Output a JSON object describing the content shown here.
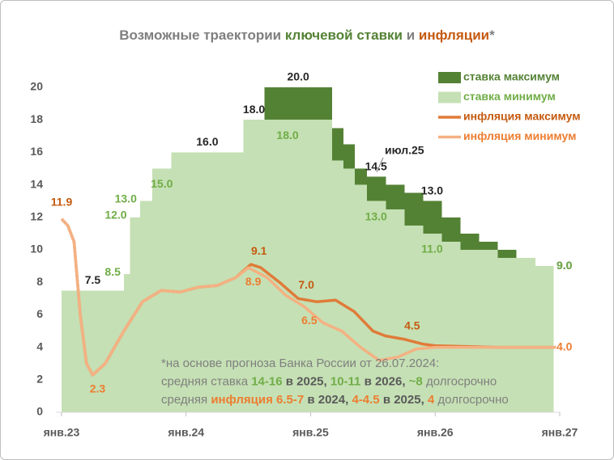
{
  "chart_data": {
    "type": "combo",
    "title": [
      {
        "text": "Возможные траектории ",
        "color": "#7f7f7f"
      },
      {
        "text": "ключевой ставки",
        "color": "#548235"
      },
      {
        "text": " и ",
        "color": "#7f7f7f"
      },
      {
        "text": "инфляции",
        "color": "#c55a11"
      },
      {
        "text": "*",
        "color": "#7f7f7f"
      }
    ],
    "xlim": [
      2023,
      2027
    ],
    "xticks": [
      {
        "value": 2023,
        "label": "янв.23"
      },
      {
        "value": 2024,
        "label": "янв.24"
      },
      {
        "value": 2025,
        "label": "янв.25"
      },
      {
        "value": 2026,
        "label": "янв.26"
      },
      {
        "value": 2027,
        "label": "янв.27"
      }
    ],
    "ylim": [
      0,
      20
    ],
    "yticks": [
      0,
      2,
      4,
      6,
      8,
      10,
      12,
      14,
      16,
      18,
      20
    ],
    "grid": false,
    "legend": "top-right",
    "series": [
      {
        "name": "ставка максимум",
        "type": "step",
        "color": "#548235",
        "label_color": "#262626",
        "x": [
          2023,
          2023.5,
          2023.55,
          2023.63,
          2023.73,
          2023.88,
          2024.46,
          2024.63,
          2025.17,
          2025.26,
          2025.35,
          2025.45,
          2025.6,
          2025.75,
          2025.9,
          2026.05,
          2026.2,
          2026.35,
          2026.5,
          2026.65,
          2026.8
        ],
        "values": [
          7.5,
          8.5,
          12,
          13,
          15,
          16,
          18,
          20,
          17.5,
          16.5,
          15,
          14.5,
          14,
          13.5,
          13,
          12,
          11,
          10.5,
          10,
          9.5,
          9
        ],
        "value_labels": [
          "7.5",
          null,
          null,
          null,
          null,
          "16.0",
          "18.0",
          "20.0",
          null,
          null,
          null,
          "14.5",
          null,
          null,
          "13.0",
          null,
          null,
          null,
          null,
          null,
          "9.0"
        ]
      },
      {
        "name": "ставка минимум",
        "type": "step",
        "color": "#c5e0b4",
        "label_color": "#70ad47",
        "x": [
          2023,
          2023.5,
          2023.55,
          2023.63,
          2023.73,
          2023.88,
          2024.46,
          2025.17,
          2025.26,
          2025.35,
          2025.45,
          2025.6,
          2025.75,
          2025.9,
          2026.05,
          2026.2,
          2026.5,
          2026.8
        ],
        "values": [
          7.5,
          8.5,
          12,
          13,
          15,
          16,
          18,
          15.5,
          15,
          14,
          13,
          12.5,
          11.5,
          11,
          10.5,
          10,
          9.5,
          9
        ],
        "value_labels": [
          null,
          "8.5",
          "12.0",
          "13.0",
          "15.0",
          null,
          "18.0",
          null,
          null,
          null,
          "13.0",
          null,
          null,
          "11.0",
          null,
          null,
          null,
          "9.0"
        ]
      },
      {
        "name": "инфляция максимум",
        "type": "line",
        "color": "#e07b39",
        "label_color": "#c55a11",
        "x": [
          2023.0,
          2023.05,
          2023.1,
          2023.15,
          2023.2,
          2023.25,
          2023.35,
          2023.5,
          2023.65,
          2023.8,
          2023.95,
          2024.1,
          2024.25,
          2024.4,
          2024.52,
          2024.6,
          2024.75,
          2024.9,
          2025.05,
          2025.2,
          2025.35,
          2025.5,
          2025.6,
          2025.75,
          2025.9,
          2026.0,
          2026.5,
          2026.97
        ],
        "values": [
          11.9,
          11.5,
          10.5,
          6,
          3,
          2.3,
          3,
          5,
          6.8,
          7.5,
          7.4,
          7.7,
          7.8,
          8.3,
          9.1,
          8.9,
          8,
          7.0,
          6.8,
          6.9,
          6.2,
          5.0,
          4.7,
          4.5,
          4.2,
          4.1,
          4.0,
          4.0
        ],
        "value_labels": [
          "11.9",
          null,
          null,
          null,
          null,
          null,
          null,
          null,
          null,
          null,
          null,
          null,
          null,
          null,
          "9.1",
          null,
          null,
          "7.0",
          null,
          null,
          null,
          null,
          null,
          "4.5",
          null,
          null,
          null,
          null
        ]
      },
      {
        "name": "инфляция минимум",
        "type": "line",
        "color": "#f4b183",
        "label_color": "#ed7d31",
        "x": [
          2023.0,
          2023.05,
          2023.1,
          2023.15,
          2023.2,
          2023.25,
          2023.35,
          2023.5,
          2023.65,
          2023.8,
          2023.95,
          2024.1,
          2024.25,
          2024.4,
          2024.5,
          2024.65,
          2024.8,
          2024.95,
          2025.1,
          2025.25,
          2025.4,
          2025.55,
          2025.7,
          2025.85,
          2026.0,
          2026.97
        ],
        "values": [
          11.9,
          11.5,
          10.5,
          6,
          3,
          2.3,
          3,
          5,
          6.8,
          7.5,
          7.4,
          7.7,
          7.8,
          8.3,
          8.9,
          8.3,
          7.2,
          6.5,
          5.5,
          5.0,
          4.0,
          3.2,
          3.4,
          3.9,
          4.0,
          4.0
        ],
        "value_labels": [
          null,
          null,
          null,
          null,
          null,
          "2.3",
          null,
          null,
          null,
          null,
          null,
          null,
          null,
          null,
          "8.9",
          null,
          null,
          "6.5",
          null,
          null,
          null,
          null,
          null,
          null,
          null,
          "4.0"
        ]
      }
    ],
    "annotations": [
      "июл.25"
    ],
    "note": [
      [
        {
          "text": "*на основе прогноза Банка России от 26.07.2024:",
          "color": "#7f7f7f",
          "bold": false
        }
      ],
      [
        {
          "text": "средняя ставка ",
          "color": "#7f7f7f",
          "bold": false
        },
        {
          "text": "14-16",
          "color": "#70ad47",
          "bold": true
        },
        {
          "text": " в 2025, ",
          "color": "#595959",
          "bold": true
        },
        {
          "text": "10-11",
          "color": "#70ad47",
          "bold": true
        },
        {
          "text": " в 2026, ",
          "color": "#595959",
          "bold": true
        },
        {
          "text": "~8",
          "color": "#70ad47",
          "bold": true
        },
        {
          "text": " долгосрочно",
          "color": "#7f7f7f",
          "bold": false
        }
      ],
      [
        {
          "text": "средняя ",
          "color": "#7f7f7f",
          "bold": false
        },
        {
          "text": "инфляция 6.5-7",
          "color": "#ed7d31",
          "bold": true
        },
        {
          "text": " в 2024, ",
          "color": "#595959",
          "bold": true
        },
        {
          "text": "4-4.5",
          "color": "#ed7d31",
          "bold": true
        },
        {
          "text": " в 2025, ",
          "color": "#595959",
          "bold": true
        },
        {
          "text": "4",
          "color": "#ed7d31",
          "bold": true
        },
        {
          "text": " долгосрочно",
          "color": "#7f7f7f",
          "bold": false
        }
      ]
    ]
  }
}
